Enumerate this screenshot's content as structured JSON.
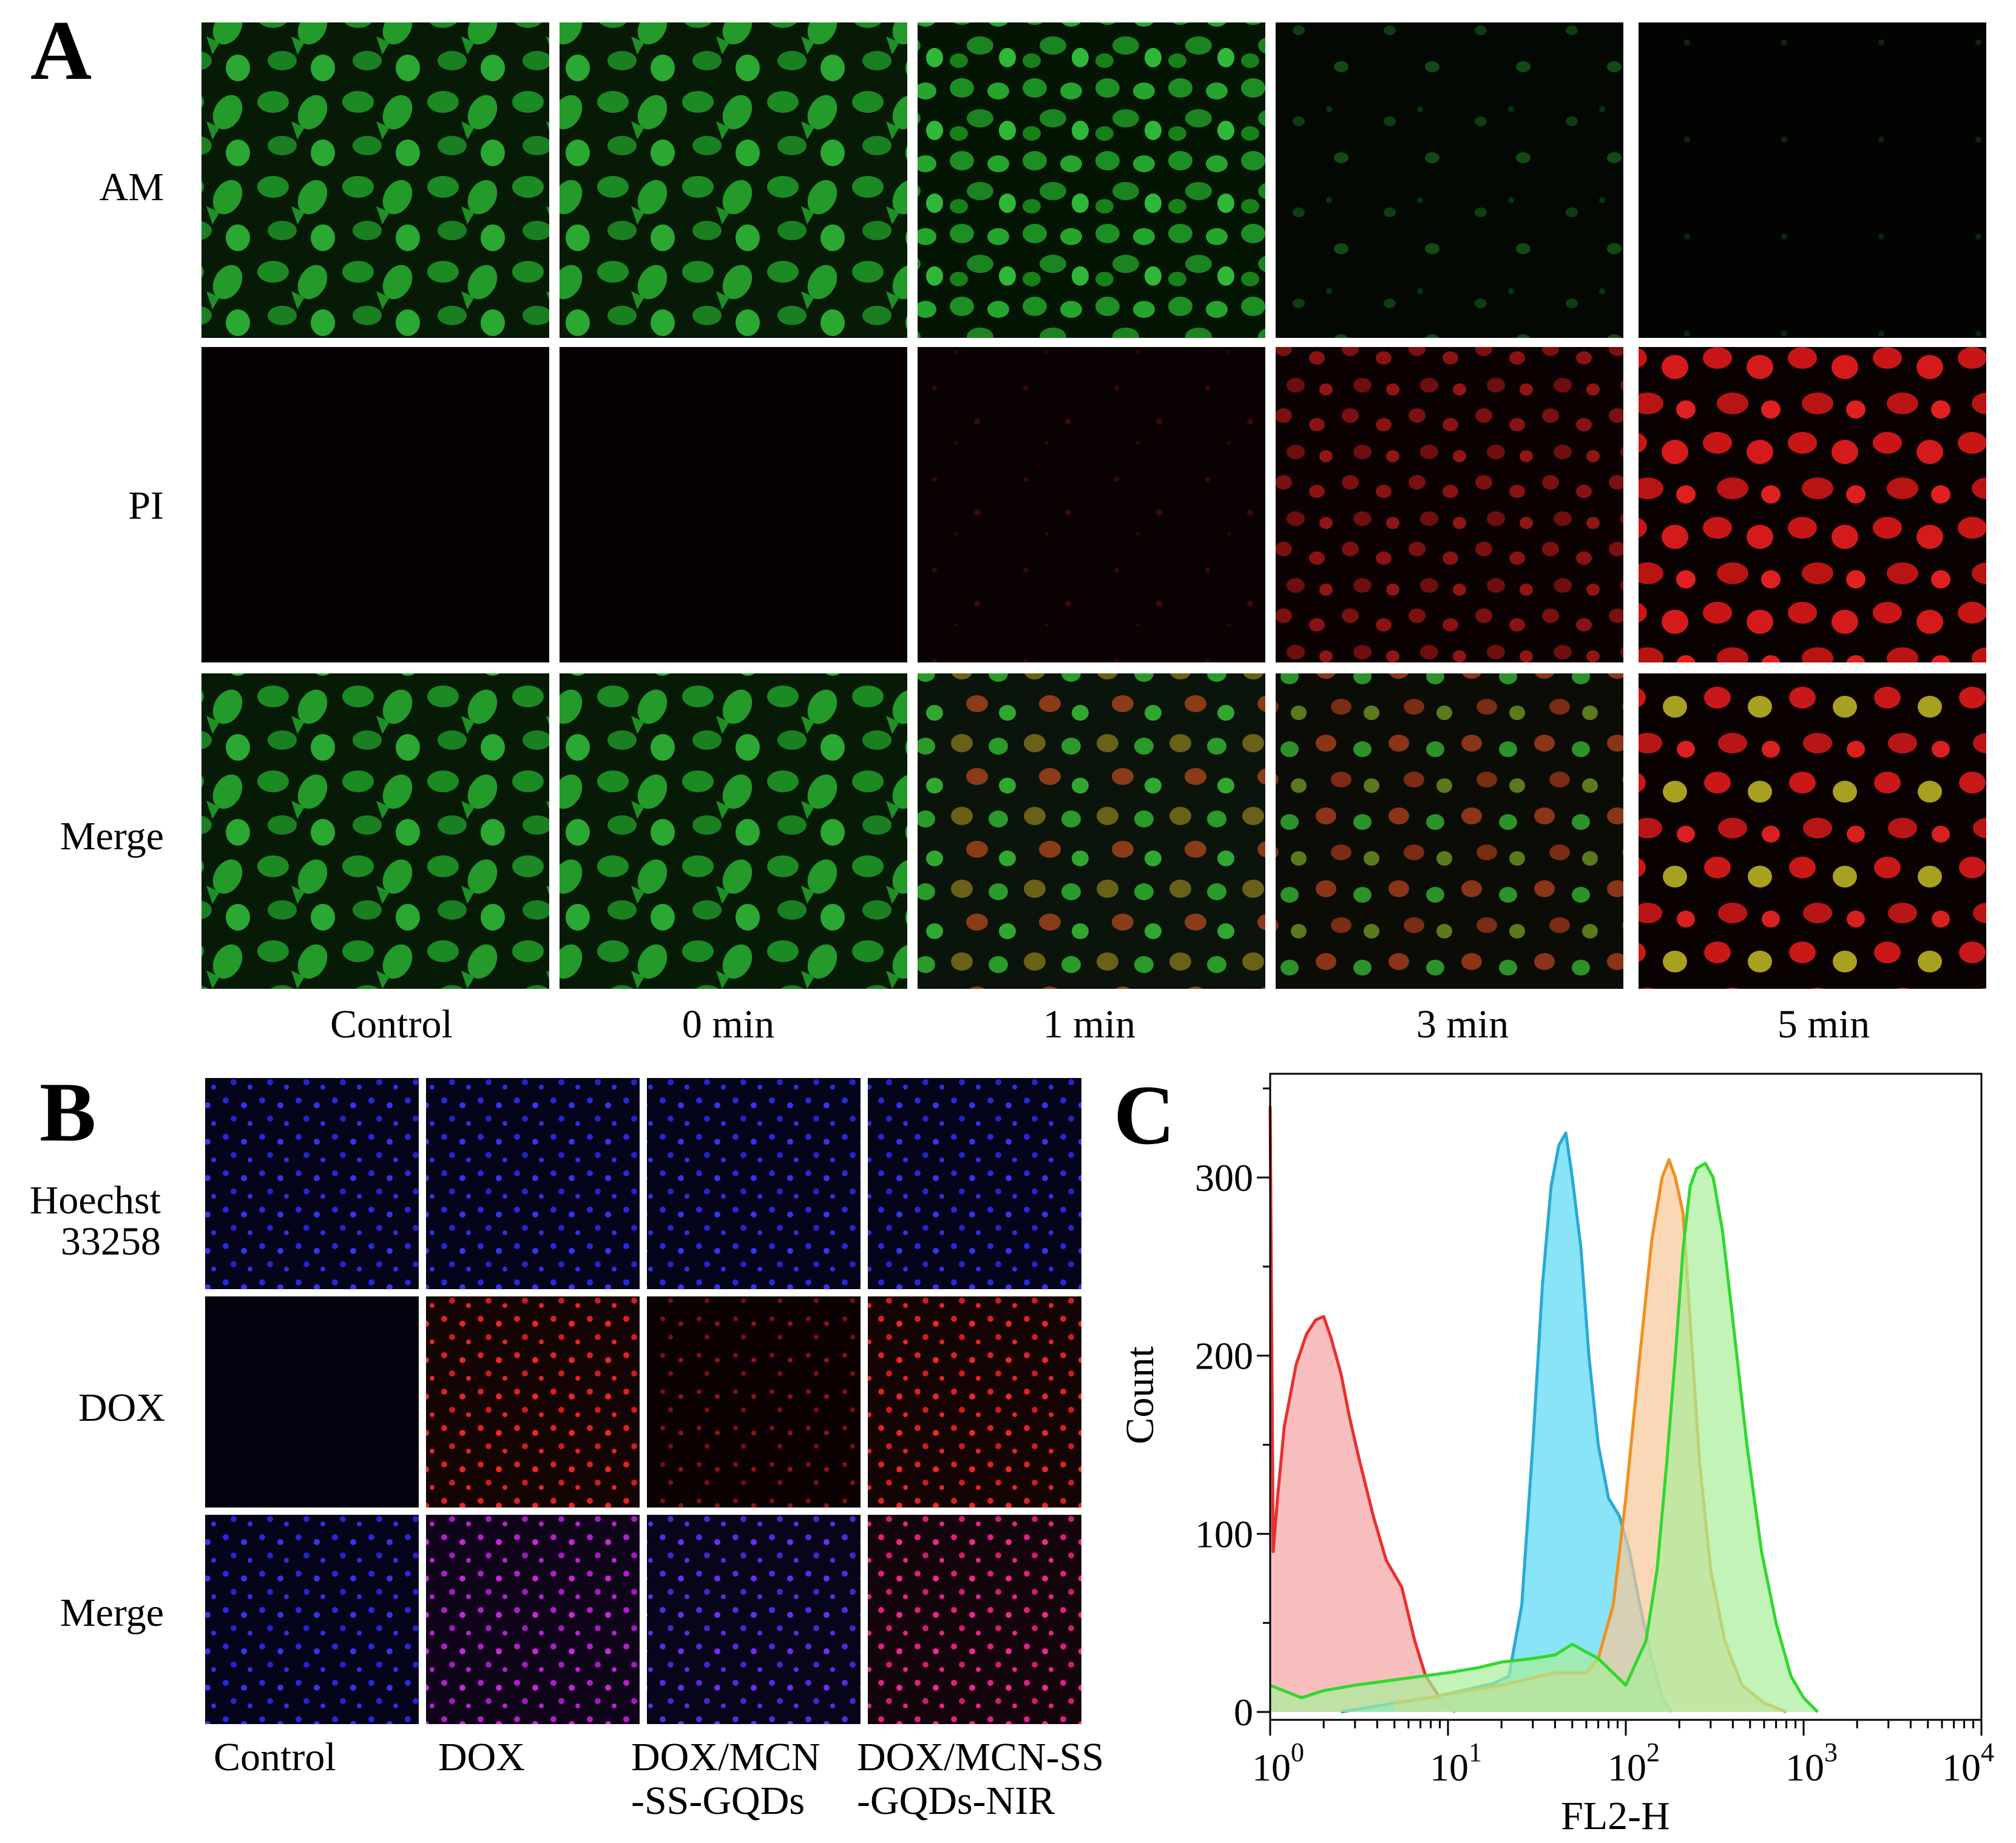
{
  "figure": {
    "panel_a": {
      "letter": "A",
      "rows": [
        "AM",
        "PI",
        "Merge"
      ],
      "columns": [
        "Control",
        "0 min",
        "1 min",
        "3 min",
        "5 min"
      ]
    },
    "panel_b": {
      "letter": "B",
      "rows": [
        "Hoechst 33258",
        "DOX",
        "Merge"
      ],
      "row_lines": [
        [
          "Hoechst",
          "33258"
        ],
        [
          "DOX"
        ],
        [
          "Merge"
        ]
      ],
      "columns": [
        "Control",
        "DOX",
        "DOX/MCN -SS-GQDs",
        "DOX/MCN-SS -GQDs-NIR"
      ],
      "column_lines": [
        [
          "Control"
        ],
        [
          "DOX"
        ],
        [
          "DOX/MCN",
          "-SS-GQDs"
        ],
        [
          "DOX/MCN-SS",
          "-GQDs-NIR"
        ]
      ]
    },
    "panel_c": {
      "letter": "C",
      "chart_data": {
        "type": "area",
        "xlabel": "FL2-H",
        "ylabel": "Count",
        "xscale": "log",
        "xlim": [
          1,
          10000
        ],
        "ylim": [
          0,
          350
        ],
        "yticks": [
          0,
          100,
          200,
          300
        ],
        "xticks": [
          {
            "base": "10",
            "exp": "0",
            "value": 1
          },
          {
            "base": "10",
            "exp": "1",
            "value": 10
          },
          {
            "base": "10",
            "exp": "2",
            "value": 100
          },
          {
            "base": "10",
            "exp": "3",
            "value": 1000
          },
          {
            "base": "10",
            "exp": "4",
            "value": 10000
          }
        ],
        "series": [
          {
            "color": "#e83030",
            "fill": "#f5a3a3",
            "x": [
              1.0,
              1.04,
              1.1,
              1.2,
              1.4,
              1.6,
              1.8,
              2.0,
              2.2,
              2.5,
              2.8,
              3.2,
              3.8,
              4.5,
              5.5,
              6.5,
              7.5,
              9,
              11
            ],
            "y": [
              340,
              90,
              120,
              160,
              195,
              212,
              220,
              222,
              210,
              190,
              165,
              140,
              110,
              85,
              70,
              40,
              20,
              8,
              0
            ]
          },
          {
            "color": "#2aa9d6",
            "fill": "#56d8f2",
            "x": [
              2.5,
              5,
              8,
              12,
              18,
              22,
              26,
              30,
              34,
              38,
              42,
              46,
              50,
              56,
              62,
              70,
              80,
              92,
              105,
              120,
              140,
              160,
              180
            ],
            "y": [
              0,
              5,
              8,
              12,
              16,
              20,
              60,
              150,
              240,
              295,
              318,
              325,
              300,
              260,
              200,
              150,
              120,
              110,
              90,
              60,
              30,
              8,
              0
            ]
          },
          {
            "color": "#f09020",
            "fill": "#f8c898",
            "x": [
              5,
              8,
              10,
              20,
              40,
              60,
              70,
              85,
              100,
              120,
              140,
              160,
              175,
              190,
              210,
              230,
              260,
              300,
              360,
              450,
              600,
              800
            ],
            "y": [
              5,
              8,
              10,
              15,
              22,
              22,
              30,
              60,
              120,
              200,
              265,
              300,
              310,
              300,
              280,
              220,
              140,
              80,
              40,
              15,
              5,
              0
            ]
          },
          {
            "color": "#30d830",
            "fill": "#a8ee98",
            "x": [
              1,
              1.5,
              2,
              3,
              5,
              7,
              10,
              15,
              20,
              30,
              40,
              50,
              70,
              100,
              130,
              150,
              170,
              190,
              210,
              230,
              250,
              280,
              310,
              350,
              400,
              480,
              580,
              700,
              850,
              1000,
              1200
            ],
            "y": [
              15,
              8,
              12,
              15,
              18,
              20,
              22,
              25,
              28,
              30,
              32,
              38,
              30,
              15,
              40,
              80,
              140,
              200,
              260,
              295,
              305,
              308,
              300,
              270,
              220,
              150,
              90,
              50,
              20,
              8,
              0
            ]
          }
        ]
      }
    }
  }
}
